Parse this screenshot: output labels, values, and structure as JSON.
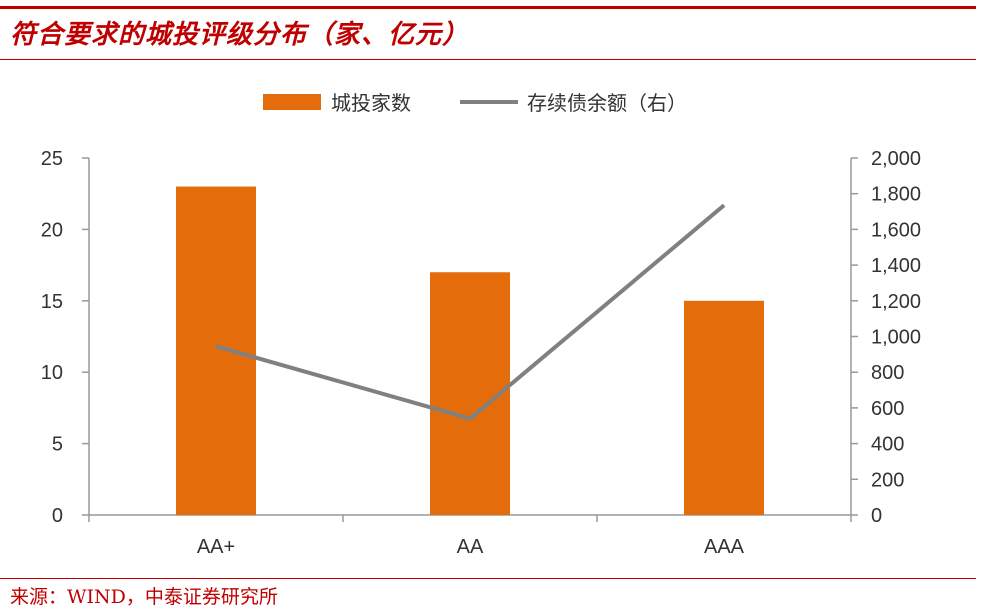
{
  "header": {
    "title": "符合要求的城投评级分布（家、亿元）"
  },
  "footer": {
    "source": "来源：WIND，中泰证券研究所"
  },
  "chart_data": {
    "type": "bar",
    "title": "符合要求的城投评级分布（家、亿元）",
    "categories": [
      "AA+",
      "AA",
      "AAA"
    ],
    "series": [
      {
        "name": "城投家数",
        "type": "bar",
        "axis": "left",
        "values": [
          23,
          17,
          15
        ]
      },
      {
        "name": "存续债余额（右）",
        "type": "line",
        "axis": "right",
        "values": [
          945,
          540,
          1735
        ]
      }
    ],
    "y_left": {
      "min": 0,
      "max": 25,
      "ticks": [
        "0",
        "5",
        "10",
        "15",
        "20",
        "25"
      ]
    },
    "y_right": {
      "min": 0,
      "max": 2000,
      "ticks": [
        "0",
        "200",
        "400",
        "600",
        "800",
        "1,000",
        "1,200",
        "1,400",
        "1,600",
        "1,800",
        "2,000"
      ]
    },
    "grid": false,
    "legend": "top-center",
    "colors": {
      "bar": "#e46c0a",
      "line": "#808080",
      "axis": "#999999"
    }
  }
}
